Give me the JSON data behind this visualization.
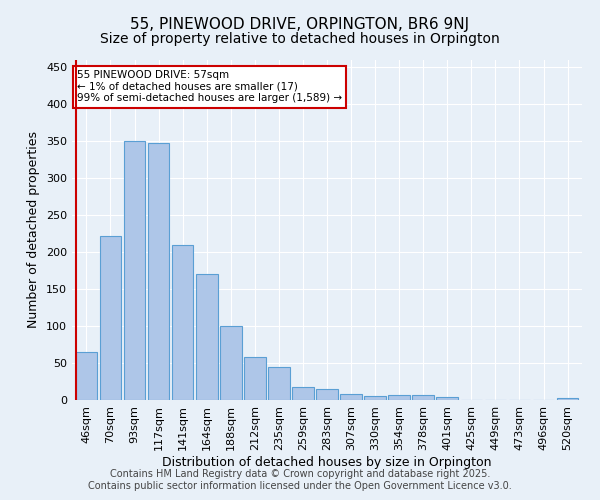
{
  "title": "55, PINEWOOD DRIVE, ORPINGTON, BR6 9NJ",
  "subtitle": "Size of property relative to detached houses in Orpington",
  "xlabel": "Distribution of detached houses by size in Orpington",
  "ylabel": "Number of detached properties",
  "categories": [
    "46sqm",
    "70sqm",
    "93sqm",
    "117sqm",
    "141sqm",
    "164sqm",
    "188sqm",
    "212sqm",
    "235sqm",
    "259sqm",
    "283sqm",
    "307sqm",
    "330sqm",
    "354sqm",
    "378sqm",
    "401sqm",
    "425sqm",
    "449sqm",
    "473sqm",
    "496sqm",
    "520sqm"
  ],
  "values": [
    65,
    222,
    350,
    348,
    210,
    170,
    100,
    58,
    44,
    18,
    15,
    8,
    5,
    7,
    7,
    4,
    0,
    0,
    0,
    0,
    3
  ],
  "bar_color": "#aec6e8",
  "bar_edge_color": "#5a9fd4",
  "vline_color": "#cc0000",
  "annotation_text": "55 PINEWOOD DRIVE: 57sqm\n← 1% of detached houses are smaller (17)\n99% of semi-detached houses are larger (1,589) →",
  "annotation_box_color": "#ffffff",
  "annotation_box_edge": "#cc0000",
  "ylim": [
    0,
    460
  ],
  "yticks": [
    0,
    50,
    100,
    150,
    200,
    250,
    300,
    350,
    400,
    450
  ],
  "footer_line1": "Contains HM Land Registry data © Crown copyright and database right 2025.",
  "footer_line2": "Contains public sector information licensed under the Open Government Licence v3.0.",
  "bg_color": "#e8f0f8",
  "plot_bg_color": "#e8f0f8",
  "title_fontsize": 11,
  "subtitle_fontsize": 10,
  "axis_fontsize": 9,
  "tick_fontsize": 8,
  "footer_fontsize": 7
}
